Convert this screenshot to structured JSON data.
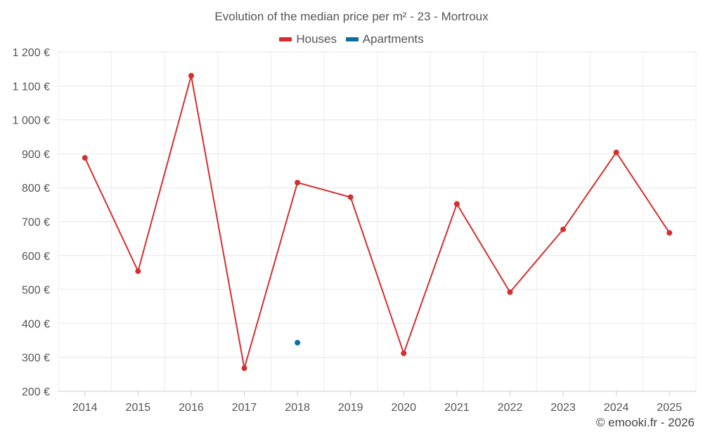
{
  "chart_data": {
    "type": "line",
    "title": "Evolution of the median price per m² - 23 - Mortroux",
    "categories": [
      "2014",
      "2015",
      "2016",
      "2017",
      "2018",
      "2019",
      "2020",
      "2021",
      "2022",
      "2023",
      "2024",
      "2025"
    ],
    "series": [
      {
        "name": "Houses",
        "color": "#d32f2f",
        "values": [
          888,
          554,
          1130,
          268,
          815,
          772,
          312,
          752,
          492,
          677,
          904,
          667
        ]
      },
      {
        "name": "Apartments",
        "color": "#0b6fa4",
        "values": [
          null,
          null,
          null,
          null,
          343,
          null,
          null,
          null,
          null,
          null,
          null,
          null
        ]
      }
    ],
    "y_ticks": [
      "200 €",
      "300 €",
      "400 €",
      "500 €",
      "600 €",
      "700 €",
      "800 €",
      "900 €",
      "1 000 €",
      "1 100 €",
      "1 200 €"
    ],
    "ylim": [
      200,
      1200
    ],
    "xlabel": "",
    "ylabel": "",
    "grid": true,
    "legend_position": "top-center"
  },
  "credit": "© emooki.fr - 2026"
}
